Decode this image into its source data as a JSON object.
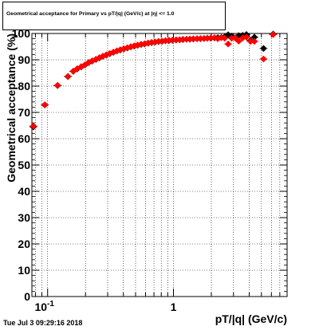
{
  "title": "Geometrical acceptance for Primary vs pT/|q| (GeV/c) at |η| <= 1.0",
  "datestamp": "Tue Jul  3 09:29:16 2018",
  "chart_data": {
    "type": "scatter",
    "title": "Geometrical acceptance for Primary vs pT/|q| (GeV/c) at |η| <= 1.0",
    "xlabel": "pT/|q| (GeV/c)",
    "ylabel": "Geometrical acceptance (%)",
    "xscale": "log",
    "xlim": [
      0.075,
      8.0
    ],
    "ylim": [
      0,
      100
    ],
    "x_tick_labels": [
      {
        "value": 0.1,
        "label": "10",
        "exp": "-1"
      },
      {
        "value": 1,
        "label": "1",
        "exp": ""
      }
    ],
    "y_ticks": [
      0,
      10,
      20,
      30,
      40,
      50,
      60,
      70,
      80,
      90,
      100
    ],
    "grid": true,
    "series": [
      {
        "marker": "diamond",
        "color": "#000000",
        "points": [
          [
            0.077,
            64.5
          ],
          [
            0.095,
            72.8
          ],
          [
            0.12,
            80.2
          ],
          [
            0.145,
            83.6
          ],
          [
            0.16,
            85.6
          ],
          [
            0.172,
            86.5
          ],
          [
            0.185,
            87.3
          ],
          [
            0.198,
            88.0
          ],
          [
            0.212,
            88.9
          ],
          [
            0.226,
            89.5
          ],
          [
            0.242,
            90.1
          ],
          [
            0.258,
            90.7
          ],
          [
            0.275,
            91.3
          ],
          [
            0.293,
            91.8
          ],
          [
            0.312,
            92.3
          ],
          [
            0.333,
            92.8
          ],
          [
            0.355,
            93.3
          ],
          [
            0.378,
            93.7
          ],
          [
            0.403,
            94.1
          ],
          [
            0.43,
            94.5
          ],
          [
            0.458,
            94.9
          ],
          [
            0.488,
            95.2
          ],
          [
            0.52,
            95.5
          ],
          [
            0.554,
            95.8
          ],
          [
            0.59,
            96.0
          ],
          [
            0.629,
            96.3
          ],
          [
            0.67,
            96.5
          ],
          [
            0.714,
            96.7
          ],
          [
            0.761,
            96.9
          ],
          [
            0.811,
            97.0
          ],
          [
            0.864,
            97.2
          ],
          [
            0.921,
            97.3
          ],
          [
            0.981,
            97.4
          ],
          [
            1.05,
            97.5
          ],
          [
            1.12,
            97.6
          ],
          [
            1.19,
            97.7
          ],
          [
            1.27,
            97.8
          ],
          [
            1.35,
            97.8
          ],
          [
            1.44,
            97.9
          ],
          [
            1.54,
            98.0
          ],
          [
            1.64,
            98.0
          ],
          [
            1.75,
            98.1
          ],
          [
            1.86,
            98.2
          ],
          [
            1.98,
            98.2
          ],
          [
            2.12,
            98.3
          ],
          [
            2.25,
            98.4
          ],
          [
            2.4,
            98.5
          ],
          [
            2.55,
            98.7
          ],
          [
            2.72,
            99.5
          ],
          [
            2.9,
            99.0
          ],
          [
            3.1,
            98.4
          ],
          [
            3.3,
            99.2
          ],
          [
            3.55,
            99.3
          ],
          [
            3.8,
            99.6
          ],
          [
            4.1,
            97.3
          ],
          [
            4.4,
            98.6
          ],
          [
            5.2,
            94.3
          ],
          [
            6.2,
            99.8
          ]
        ]
      },
      {
        "marker": "diamond",
        "color": "#ff0000",
        "points": [
          [
            0.077,
            64.8
          ],
          [
            0.095,
            72.9
          ],
          [
            0.12,
            80.3
          ],
          [
            0.145,
            83.7
          ],
          [
            0.16,
            85.7
          ],
          [
            0.172,
            86.6
          ],
          [
            0.185,
            87.4
          ],
          [
            0.198,
            88.1
          ],
          [
            0.212,
            89.0
          ],
          [
            0.226,
            89.6
          ],
          [
            0.242,
            90.2
          ],
          [
            0.258,
            90.8
          ],
          [
            0.275,
            91.4
          ],
          [
            0.293,
            91.9
          ],
          [
            0.312,
            92.4
          ],
          [
            0.333,
            92.9
          ],
          [
            0.355,
            93.4
          ],
          [
            0.378,
            93.8
          ],
          [
            0.403,
            94.2
          ],
          [
            0.43,
            94.6
          ],
          [
            0.458,
            95.0
          ],
          [
            0.488,
            95.3
          ],
          [
            0.52,
            95.6
          ],
          [
            0.554,
            95.9
          ],
          [
            0.59,
            96.1
          ],
          [
            0.629,
            96.4
          ],
          [
            0.67,
            96.6
          ],
          [
            0.714,
            96.8
          ],
          [
            0.761,
            97.0
          ],
          [
            0.811,
            97.1
          ],
          [
            0.864,
            97.3
          ],
          [
            0.921,
            97.4
          ],
          [
            0.981,
            97.5
          ],
          [
            1.05,
            97.6
          ],
          [
            1.12,
            97.6
          ],
          [
            1.19,
            97.8
          ],
          [
            1.27,
            97.8
          ],
          [
            1.35,
            97.9
          ],
          [
            1.44,
            98.0
          ],
          [
            1.54,
            98.0
          ],
          [
            1.64,
            98.1
          ],
          [
            1.75,
            98.1
          ],
          [
            1.86,
            98.2
          ],
          [
            1.98,
            98.3
          ],
          [
            2.12,
            98.4
          ],
          [
            2.25,
            98.0
          ],
          [
            2.4,
            98.4
          ],
          [
            2.55,
            98.2
          ],
          [
            2.72,
            96.0
          ],
          [
            2.9,
            98.2
          ],
          [
            3.1,
            98.3
          ],
          [
            3.3,
            97.1
          ],
          [
            3.55,
            98.3
          ],
          [
            3.8,
            98.6
          ],
          [
            4.1,
            97.0
          ],
          [
            4.4,
            97.0
          ],
          [
            5.2,
            90.3
          ],
          [
            6.2,
            99.6
          ]
        ]
      }
    ]
  }
}
